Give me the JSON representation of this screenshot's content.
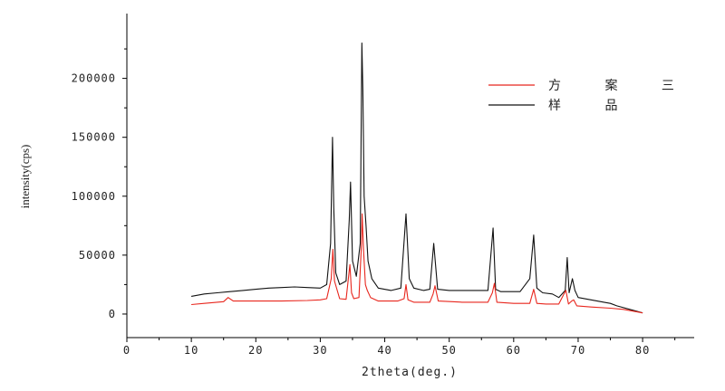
{
  "chart_data": {
    "type": "line",
    "xlabel": "2theta(deg.)",
    "ylabel": "intensity(cps)",
    "xlim": [
      0,
      88
    ],
    "ylim": [
      -20000,
      255000
    ],
    "x_ticks": [
      0,
      10,
      20,
      30,
      40,
      50,
      60,
      70,
      80
    ],
    "y_ticks": [
      0,
      50000,
      100000,
      150000,
      200000
    ],
    "grid": false,
    "legend_position": "top-right",
    "series": [
      {
        "name": "方 案 三",
        "color": "#e8261d",
        "x": [
          10,
          12,
          14,
          15,
          15.7,
          16.5,
          18,
          20,
          24,
          28,
          30,
          31,
          31.7,
          31.95,
          32.2,
          33,
          34,
          34.6,
          34.85,
          35.2,
          36,
          36.4,
          36.5,
          36.7,
          37,
          37.3,
          37.8,
          39,
          42,
          43,
          43.3,
          43.6,
          44.5,
          47,
          47.5,
          47.8,
          48.3,
          52,
          56,
          56.7,
          57,
          57.4,
          60,
          62.5,
          63.1,
          63.6,
          65,
          67,
          67.8,
          68.1,
          68.5,
          69,
          69.3,
          69.8,
          72,
          75,
          77,
          80
        ],
        "values": [
          8000,
          9000,
          10000,
          10500,
          14000,
          11000,
          11000,
          11000,
          11000,
          11500,
          12000,
          13000,
          30000,
          55000,
          28000,
          13000,
          12500,
          42000,
          18000,
          13000,
          14000,
          60000,
          85000,
          55000,
          25000,
          20000,
          14000,
          11000,
          11000,
          13000,
          25000,
          12000,
          10000,
          10000,
          17000,
          24000,
          11000,
          10000,
          10000,
          18000,
          26000,
          10000,
          9000,
          9000,
          21000,
          9000,
          8500,
          8500,
          17000,
          20000,
          8500,
          11000,
          12000,
          7000,
          6000,
          5000,
          4000,
          1000
        ]
      },
      {
        "name": "样 品",
        "color": "#111111",
        "x": [
          10,
          12,
          14,
          16,
          18,
          20,
          22,
          24,
          26,
          28,
          30,
          31,
          31.6,
          31.9,
          32.1,
          32.4,
          33,
          34,
          34.5,
          34.7,
          35,
          35.6,
          36.2,
          36.45,
          36.6,
          36.8,
          37.1,
          37.4,
          38,
          39,
          41,
          42.5,
          43.3,
          43.8,
          44.5,
          46,
          47,
          47.6,
          48.2,
          50,
          53,
          56,
          56.8,
          57.2,
          58,
          61,
          62.5,
          63.1,
          63.6,
          64.5,
          66,
          67,
          68,
          68.3,
          68.6,
          69.1,
          69.5,
          70,
          72,
          74,
          75,
          76,
          78,
          80
        ],
        "values": [
          15000,
          17000,
          18000,
          19000,
          20000,
          21000,
          22000,
          22500,
          23000,
          22500,
          22000,
          25000,
          60000,
          150000,
          90000,
          35000,
          25000,
          28000,
          80000,
          112000,
          45000,
          32000,
          60000,
          230000,
          190000,
          100000,
          75000,
          45000,
          30000,
          22000,
          20000,
          22000,
          85000,
          30000,
          22000,
          20000,
          21000,
          60000,
          21000,
          20000,
          20000,
          20000,
          73000,
          21000,
          19000,
          19000,
          30000,
          67000,
          22000,
          18000,
          17000,
          14000,
          20000,
          48000,
          18000,
          30000,
          20000,
          14000,
          12000,
          10000,
          9000,
          7000,
          4000,
          1000
        ]
      }
    ]
  }
}
